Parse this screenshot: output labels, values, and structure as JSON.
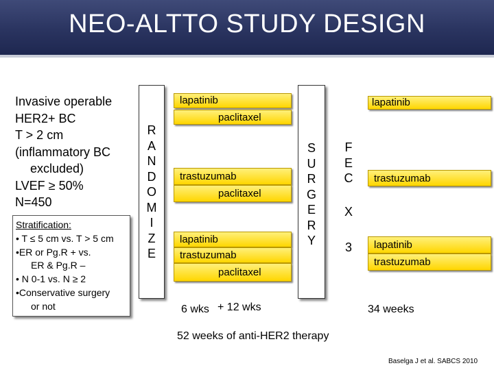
{
  "header": {
    "title": "NEO-ALTTO STUDY DESIGN"
  },
  "criteria": [
    "Invasive operable",
    "HER2+ BC",
    "T > 2 cm",
    "(inflammatory BC",
    "excluded)",
    "LVEF ≥ 50%",
    "N=450"
  ],
  "stratification": {
    "heading": "Stratification:",
    "items": [
      "• T ≤ 5 cm vs. T > 5 cm",
      "•ER or Pg.R + vs.",
      "ER & Pg.R –",
      "• N 0-1 vs. N ≥ 2",
      "•Conservative surgery",
      "or not"
    ]
  },
  "randomize_letters": [
    "R",
    "A",
    "N",
    "D",
    "O",
    "M",
    "I",
    "Z",
    "E"
  ],
  "surgery_letters": [
    "S",
    "U",
    "R",
    "G",
    "E",
    "R",
    "Y"
  ],
  "fec": {
    "letters": [
      "F",
      "E",
      "C"
    ],
    "times": "X",
    "cycles": "3"
  },
  "arms": {
    "arm1": {
      "line1": "lapatinib",
      "line2": "paclitaxel"
    },
    "arm2": {
      "line1": "trastuzumab",
      "line2": "paclitaxel"
    },
    "arm3": {
      "line1": "lapatinib",
      "line2": "trastuzumab",
      "line3": "paclitaxel"
    }
  },
  "post_arms": {
    "arm1": "lapatinib",
    "arm2": "trastuzumab",
    "arm3": {
      "line1": "lapatinib",
      "line2": "trastuzumab"
    }
  },
  "timeline": {
    "wks6": "6 wks",
    "wks12": "+ 12 wks",
    "wks34": "34 weeks",
    "total": "52 weeks of anti-HER2 therapy"
  },
  "citation": "Baselga J et al. SABCS 2010",
  "colors": {
    "header": "#2a3460",
    "bar": "#ffd600"
  }
}
